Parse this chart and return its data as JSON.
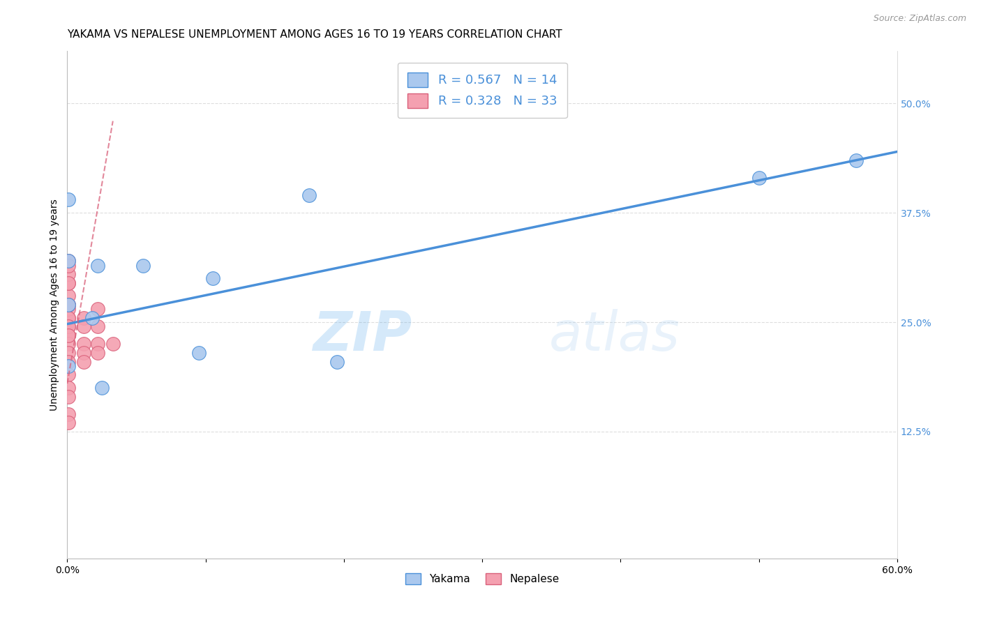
{
  "title": "YAKAMA VS NEPALESE UNEMPLOYMENT AMONG AGES 16 TO 19 YEARS CORRELATION CHART",
  "source": "Source: ZipAtlas.com",
  "ylabel": "Unemployment Among Ages 16 to 19 years",
  "xlim": [
    0.0,
    0.6
  ],
  "ylim": [
    -0.02,
    0.56
  ],
  "yticks_right": [
    0.125,
    0.25,
    0.375,
    0.5
  ],
  "ytick_labels_right": [
    "12.5%",
    "25.0%",
    "37.5%",
    "50.0%"
  ],
  "yakama_R": 0.567,
  "yakama_N": 14,
  "nepalese_R": 0.328,
  "nepalese_N": 33,
  "yakama_color": "#aac8ee",
  "yakama_line_color": "#4a90d9",
  "nepalese_color": "#f4a0b0",
  "nepalese_line_color": "#d9607a",
  "watermark_zip": "ZIP",
  "watermark_atlas": "atlas",
  "yakama_x": [
    0.001,
    0.001,
    0.001,
    0.001,
    0.022,
    0.018,
    0.055,
    0.105,
    0.095,
    0.175,
    0.195,
    0.5,
    0.57,
    0.025
  ],
  "yakama_y": [
    0.39,
    0.32,
    0.27,
    0.2,
    0.315,
    0.255,
    0.315,
    0.3,
    0.215,
    0.395,
    0.205,
    0.415,
    0.435,
    0.175
  ],
  "nepalese_x": [
    0.001,
    0.001,
    0.001,
    0.001,
    0.001,
    0.001,
    0.001,
    0.001,
    0.001,
    0.001,
    0.001,
    0.001,
    0.001,
    0.001,
    0.001,
    0.001,
    0.001,
    0.001,
    0.001,
    0.001,
    0.001,
    0.001,
    0.001,
    0.012,
    0.012,
    0.012,
    0.012,
    0.012,
    0.022,
    0.022,
    0.022,
    0.022,
    0.033
  ],
  "nepalese_y": [
    0.255,
    0.245,
    0.235,
    0.225,
    0.265,
    0.27,
    0.28,
    0.295,
    0.305,
    0.32,
    0.295,
    0.315,
    0.27,
    0.255,
    0.245,
    0.235,
    0.215,
    0.205,
    0.19,
    0.175,
    0.165,
    0.145,
    0.135,
    0.255,
    0.245,
    0.225,
    0.215,
    0.205,
    0.265,
    0.245,
    0.225,
    0.215,
    0.225
  ],
  "yakama_trendline_x": [
    0.0,
    0.6
  ],
  "yakama_trendline_y": [
    0.248,
    0.445
  ],
  "nepalese_trendline_x": [
    0.0,
    0.033
  ],
  "nepalese_trendline_y": [
    0.18,
    0.48
  ],
  "grid_color": "#dddddd",
  "background_color": "#ffffff",
  "title_fontsize": 11,
  "axis_label_fontsize": 10,
  "tick_fontsize": 10,
  "legend_fontsize": 13
}
